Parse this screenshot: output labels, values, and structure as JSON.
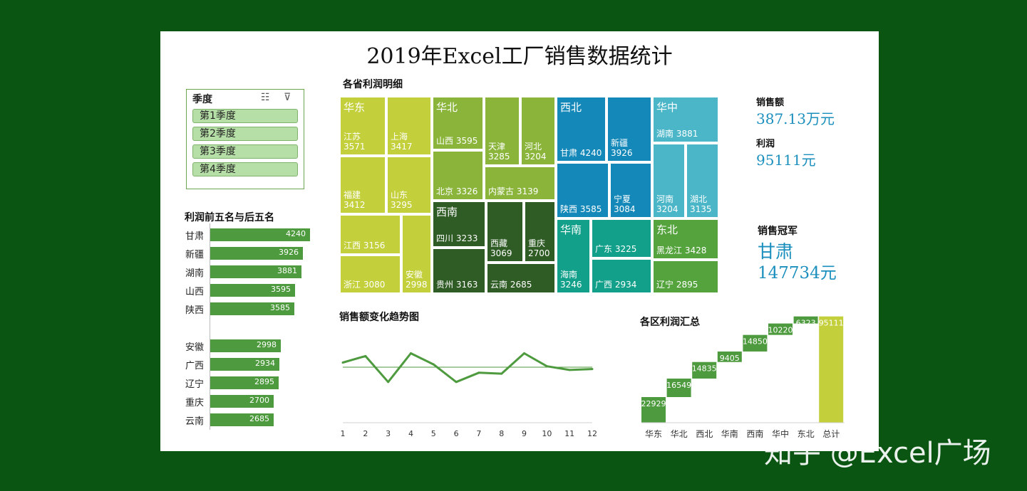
{
  "title": "2019年Excel工厂销售数据统计",
  "slicer": {
    "header": "季度",
    "items": [
      "第1季度",
      "第2季度",
      "第3季度",
      "第4季度"
    ]
  },
  "top_bottom": {
    "title": "利润前五名与后五名",
    "top": [
      {
        "label": "甘肃",
        "value": 4240
      },
      {
        "label": "新疆",
        "value": 3926
      },
      {
        "label": "湖南",
        "value": 3881
      },
      {
        "label": "山西",
        "value": 3595
      },
      {
        "label": "陕西",
        "value": 3585
      }
    ],
    "bottom": [
      {
        "label": "安徽",
        "value": 2998
      },
      {
        "label": "广西",
        "value": 2934
      },
      {
        "label": "辽宁",
        "value": 2895
      },
      {
        "label": "重庆",
        "value": 2700
      },
      {
        "label": "云南",
        "value": 2685
      }
    ],
    "bar_color": "#4e9a3e"
  },
  "treemap": {
    "title": "各省利润明细",
    "regions": [
      {
        "name": "华东",
        "color": "#c3cf3b",
        "provinces": [
          {
            "name": "江苏",
            "value": 3571
          },
          {
            "name": "上海",
            "value": 3417
          },
          {
            "name": "福建",
            "value": 3412
          },
          {
            "name": "山东",
            "value": 3295
          },
          {
            "name": "江西",
            "value": 3156
          },
          {
            "name": "浙江",
            "value": 3080
          },
          {
            "name": "安徽",
            "value": 2998
          }
        ]
      },
      {
        "name": "华北",
        "color": "#8ab53a",
        "provinces": [
          {
            "name": "山西",
            "value": 3595
          },
          {
            "name": "天津",
            "value": 3285
          },
          {
            "name": "河北",
            "value": 3204
          },
          {
            "name": "北京",
            "value": 3326
          },
          {
            "name": "内蒙古",
            "value": 3139
          }
        ]
      },
      {
        "name": "西南",
        "color": "#2f5b25",
        "provinces": [
          {
            "name": "四川",
            "value": 3233
          },
          {
            "name": "西藏",
            "value": 3069
          },
          {
            "name": "重庆",
            "value": 2700
          },
          {
            "name": "贵州",
            "value": 3163
          },
          {
            "name": "云南",
            "value": 2685
          }
        ]
      },
      {
        "name": "西北",
        "color": "#1488b8",
        "provinces": [
          {
            "name": "甘肃",
            "value": 4240
          },
          {
            "name": "新疆",
            "value": 3926
          },
          {
            "name": "陕西",
            "value": 3585
          },
          {
            "name": "宁夏",
            "value": 3084
          }
        ]
      },
      {
        "name": "华南",
        "color": "#13a08a",
        "provinces": [
          {
            "name": "海南",
            "value": 3246
          },
          {
            "name": "广东",
            "value": 3225
          },
          {
            "name": "广西",
            "value": 2934
          }
        ]
      },
      {
        "name": "华中",
        "color": "#4ab6c8",
        "provinces": [
          {
            "name": "湖南",
            "value": 3881
          },
          {
            "name": "河南",
            "value": 3204
          },
          {
            "name": "湖北",
            "value": 3135
          }
        ]
      },
      {
        "name": "东北",
        "color": "#55a33d",
        "provinces": [
          {
            "name": "黑龙江",
            "value": 3428
          },
          {
            "name": "辽宁",
            "value": 2895
          }
        ]
      }
    ]
  },
  "kpi": {
    "sales_label": "销售额",
    "sales_value": "387.13万元",
    "profit_label": "利润",
    "profit_value": "95111元",
    "champion_label": "销售冠军",
    "champion_name": "甘肃",
    "champion_value": "147734元"
  },
  "chart_data": [
    {
      "type": "line",
      "title": "销售额变化趋势图",
      "x": [
        1,
        2,
        3,
        4,
        5,
        6,
        7,
        8,
        9,
        10,
        11,
        12
      ],
      "series": [
        {
          "values": [
            32.5,
            36,
            22,
            37.5,
            31.5,
            22,
            27,
            26.5,
            37.5,
            30.5,
            28.5,
            29
          ]
        }
      ],
      "reference_line": 30,
      "ylim": [
        0,
        50
      ],
      "color": "#4e9a3e"
    },
    {
      "type": "bar",
      "subtype": "waterfall",
      "title": "各区利润汇总",
      "categories": [
        "华东",
        "华北",
        "西北",
        "华南",
        "西南",
        "华中",
        "东北",
        "总计"
      ],
      "values": [
        22929,
        16549,
        14835,
        9405,
        14850,
        10220,
        6323,
        95111
      ],
      "ylim": [
        0,
        100000
      ],
      "colors": {
        "increase": "#4e9a3e",
        "total": "#c3cf3b"
      }
    }
  ],
  "watermark": "知乎 @Excel广场"
}
